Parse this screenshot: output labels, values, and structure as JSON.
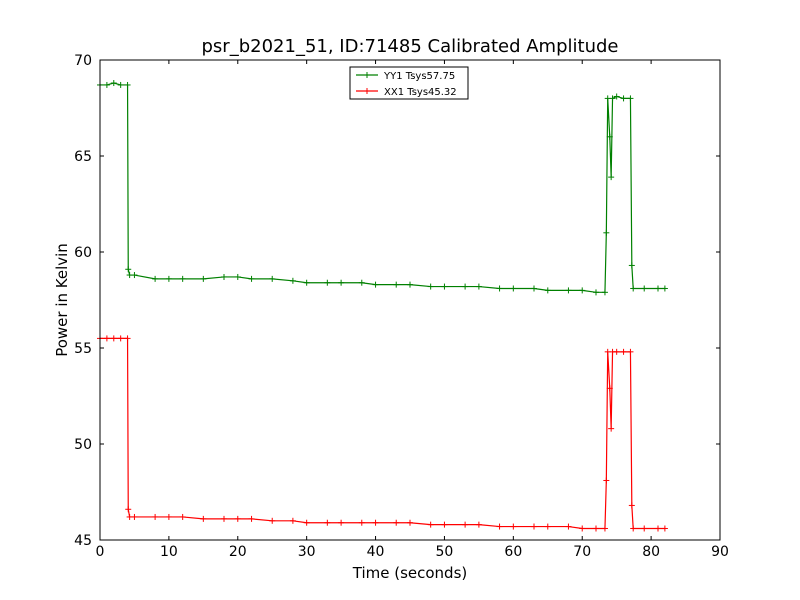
{
  "chart_data": {
    "type": "line",
    "title": "psr_b2021_51, ID:71485 Calibrated Amplitude",
    "xlabel": "Time (seconds)",
    "ylabel": "Power in Kelvin",
    "xlim": [
      0,
      90
    ],
    "ylim": [
      45,
      70
    ],
    "xticks": [
      "0",
      "10",
      "20",
      "30",
      "40",
      "50",
      "60",
      "70",
      "80",
      "90"
    ],
    "yticks": [
      "45",
      "50",
      "55",
      "60",
      "65",
      "70"
    ],
    "grid": false,
    "legend_position": "top-center",
    "series": [
      {
        "name": "YY1 Tsys57.75",
        "color": "#008000",
        "marker": "+",
        "points": [
          [
            0,
            68.7
          ],
          [
            1,
            68.7
          ],
          [
            2,
            68.8
          ],
          [
            3,
            68.7
          ],
          [
            4,
            68.7
          ],
          [
            4.1,
            59.1
          ],
          [
            4.3,
            58.8
          ],
          [
            5,
            58.8
          ],
          [
            8,
            58.6
          ],
          [
            10,
            58.6
          ],
          [
            12,
            58.6
          ],
          [
            15,
            58.6
          ],
          [
            18,
            58.7
          ],
          [
            20,
            58.7
          ],
          [
            22,
            58.6
          ],
          [
            25,
            58.6
          ],
          [
            28,
            58.5
          ],
          [
            30,
            58.4
          ],
          [
            33,
            58.4
          ],
          [
            35,
            58.4
          ],
          [
            38,
            58.4
          ],
          [
            40,
            58.3
          ],
          [
            43,
            58.3
          ],
          [
            45,
            58.3
          ],
          [
            48,
            58.2
          ],
          [
            50,
            58.2
          ],
          [
            53,
            58.2
          ],
          [
            55,
            58.2
          ],
          [
            58,
            58.1
          ],
          [
            60,
            58.1
          ],
          [
            63,
            58.1
          ],
          [
            65,
            58.0
          ],
          [
            68,
            58.0
          ],
          [
            70,
            58.0
          ],
          [
            72,
            57.9
          ],
          [
            73.3,
            57.9
          ],
          [
            73.5,
            61.0
          ],
          [
            73.7,
            68.0
          ],
          [
            74.0,
            66.0
          ],
          [
            74.2,
            63.9
          ],
          [
            74.4,
            68.0
          ],
          [
            75,
            68.1
          ],
          [
            76,
            68.0
          ],
          [
            77,
            68.0
          ],
          [
            77.2,
            59.3
          ],
          [
            77.4,
            58.1
          ],
          [
            79,
            58.1
          ],
          [
            81,
            58.1
          ],
          [
            82,
            58.1
          ]
        ]
      },
      {
        "name": "XX1 Tsys45.32",
        "color": "#ff0000",
        "marker": "+",
        "points": [
          [
            0,
            55.5
          ],
          [
            1,
            55.5
          ],
          [
            2,
            55.5
          ],
          [
            3,
            55.5
          ],
          [
            4,
            55.5
          ],
          [
            4.1,
            46.6
          ],
          [
            4.3,
            46.2
          ],
          [
            5,
            46.2
          ],
          [
            8,
            46.2
          ],
          [
            10,
            46.2
          ],
          [
            12,
            46.2
          ],
          [
            15,
            46.1
          ],
          [
            18,
            46.1
          ],
          [
            20,
            46.1
          ],
          [
            22,
            46.1
          ],
          [
            25,
            46.0
          ],
          [
            28,
            46.0
          ],
          [
            30,
            45.9
          ],
          [
            33,
            45.9
          ],
          [
            35,
            45.9
          ],
          [
            38,
            45.9
          ],
          [
            40,
            45.9
          ],
          [
            43,
            45.9
          ],
          [
            45,
            45.9
          ],
          [
            48,
            45.8
          ],
          [
            50,
            45.8
          ],
          [
            53,
            45.8
          ],
          [
            55,
            45.8
          ],
          [
            58,
            45.7
          ],
          [
            60,
            45.7
          ],
          [
            63,
            45.7
          ],
          [
            65,
            45.7
          ],
          [
            68,
            45.7
          ],
          [
            70,
            45.6
          ],
          [
            72,
            45.6
          ],
          [
            73.3,
            45.6
          ],
          [
            73.5,
            48.1
          ],
          [
            73.7,
            54.8
          ],
          [
            74.0,
            52.9
          ],
          [
            74.2,
            50.8
          ],
          [
            74.4,
            54.8
          ],
          [
            75,
            54.8
          ],
          [
            76,
            54.8
          ],
          [
            77,
            54.8
          ],
          [
            77.2,
            46.8
          ],
          [
            77.4,
            45.6
          ],
          [
            79,
            45.6
          ],
          [
            81,
            45.6
          ],
          [
            82,
            45.6
          ]
        ]
      }
    ]
  }
}
